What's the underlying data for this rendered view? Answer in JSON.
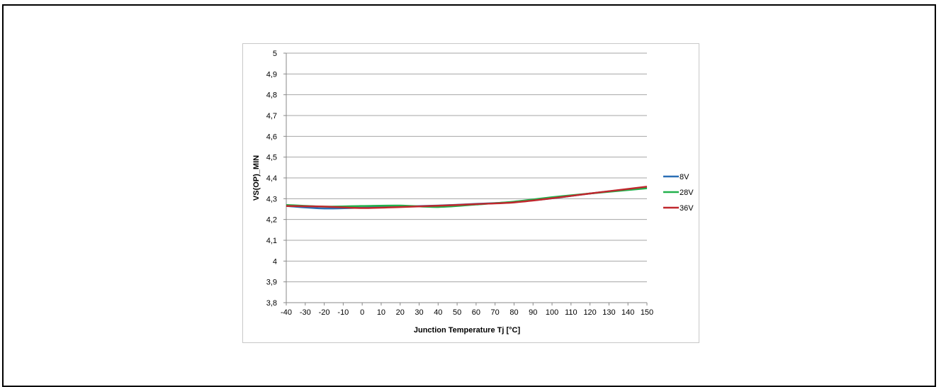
{
  "chart_data": {
    "type": "line",
    "xlabel": "Junction Temperature Tj [°C]",
    "ylabel": "VS(OP)_MIN",
    "xlim": [
      -40,
      150
    ],
    "ylim": [
      3.8,
      5
    ],
    "x_ticks": [
      "-40",
      "-30",
      "-20",
      "-10",
      "0",
      "10",
      "20",
      "30",
      "40",
      "50",
      "60",
      "70",
      "80",
      "90",
      "100",
      "110",
      "120",
      "130",
      "140",
      "150"
    ],
    "y_ticks": [
      "3,8",
      "3,9",
      "4",
      "4,1",
      "4,2",
      "4,3",
      "4,4",
      "4,5",
      "4,6",
      "4,7",
      "4,8",
      "4,9",
      "5"
    ],
    "grid": "horizontal",
    "legend_position": "right",
    "x": [
      -40,
      -20,
      0,
      20,
      40,
      60,
      80,
      100,
      120,
      150
    ],
    "series": [
      {
        "name": "8V",
        "color": "#2a6fb5",
        "values": [
          4.265,
          4.253,
          4.257,
          4.262,
          4.267,
          4.275,
          4.284,
          4.302,
          4.325,
          4.355
        ]
      },
      {
        "name": "28V",
        "color": "#22b14c",
        "values": [
          4.27,
          4.262,
          4.265,
          4.267,
          4.26,
          4.272,
          4.286,
          4.307,
          4.325,
          4.35
        ]
      },
      {
        "name": "36V",
        "color": "#c0272d",
        "values": [
          4.265,
          4.262,
          4.255,
          4.26,
          4.266,
          4.274,
          4.282,
          4.302,
          4.325,
          4.358
        ]
      }
    ]
  }
}
